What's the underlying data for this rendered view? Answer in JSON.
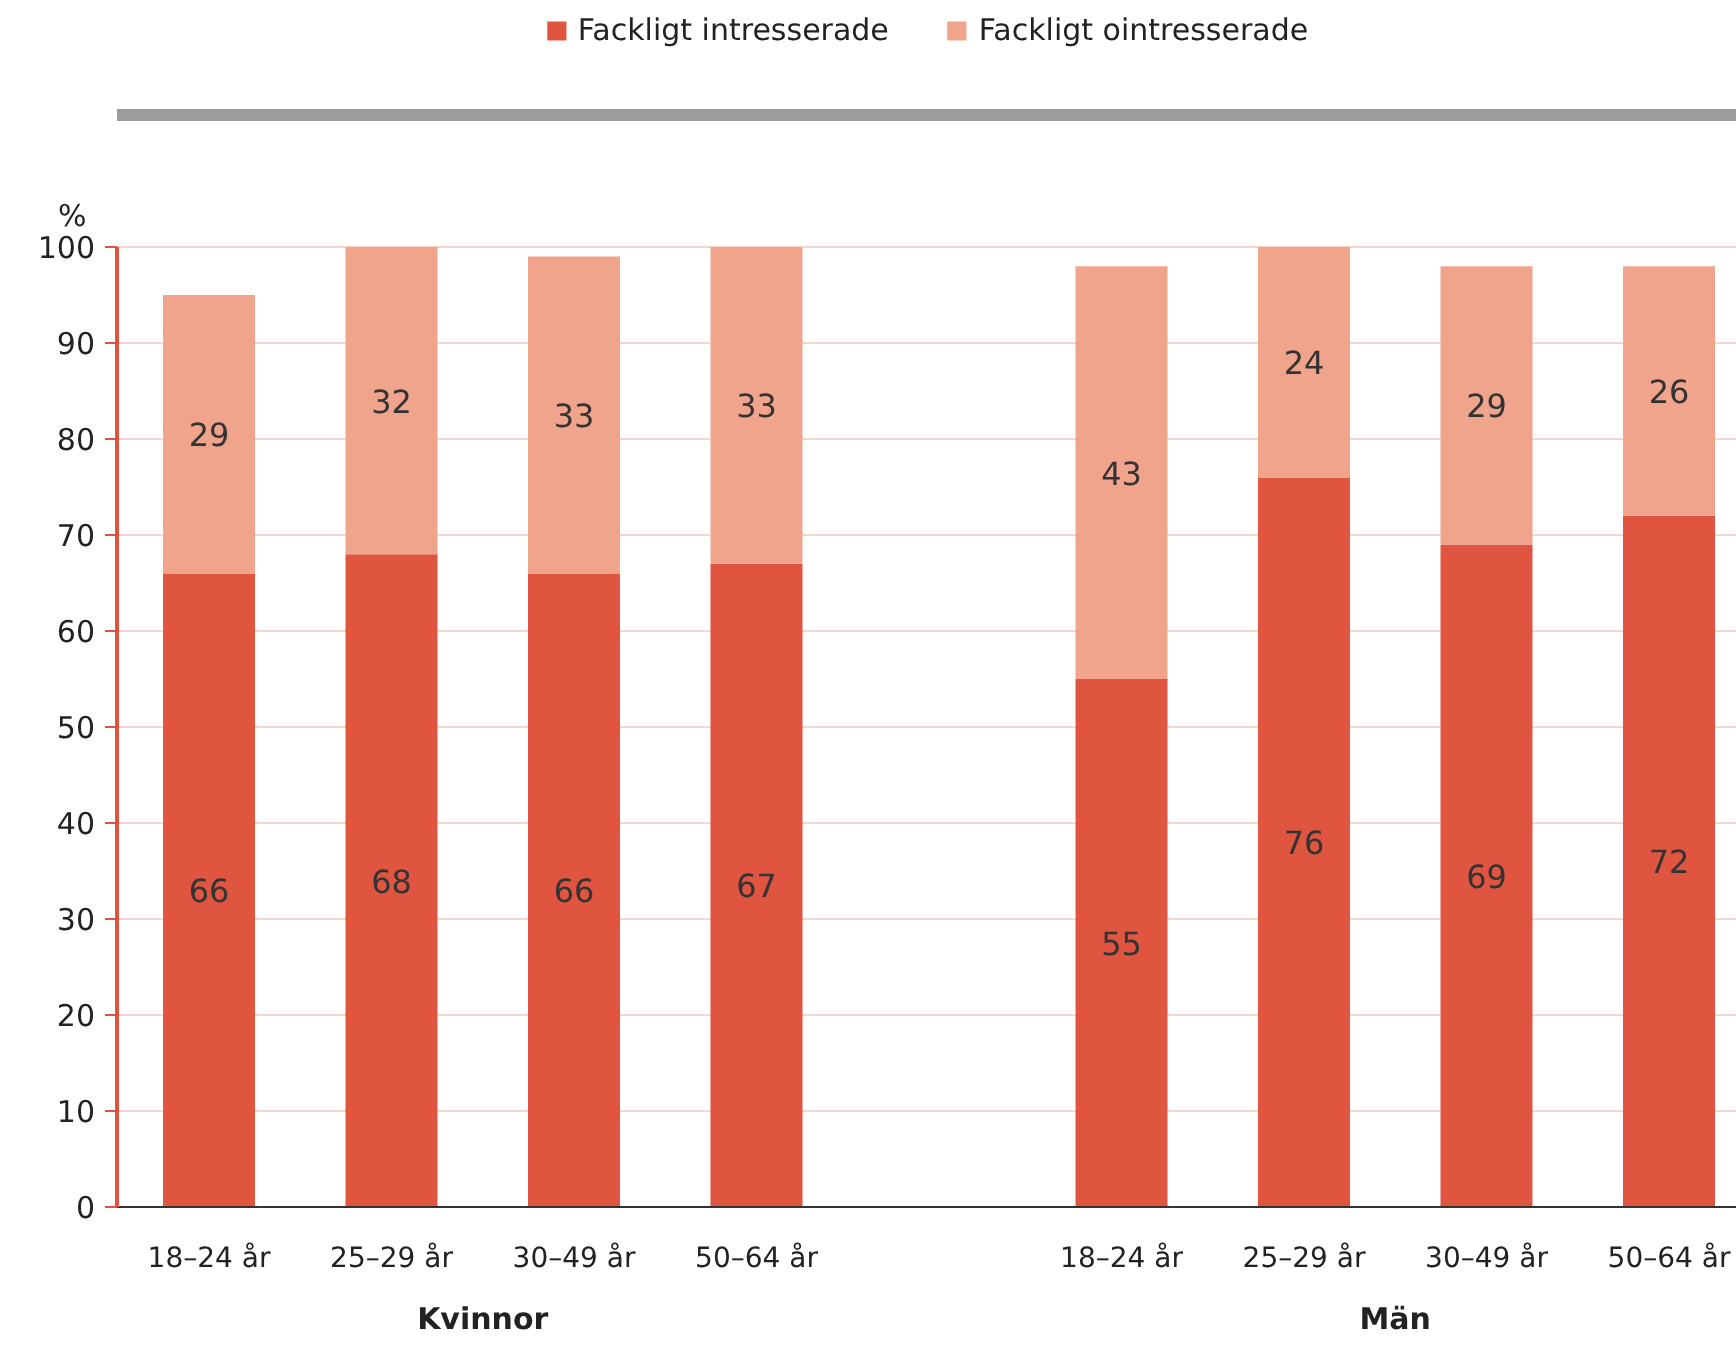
{
  "chart_data": {
    "type": "bar",
    "stacked": true,
    "ylabel": "%",
    "categories": [
      "18–24 år",
      "25–29 år",
      "30–49 år",
      "50–64 år",
      null,
      "18–24 år",
      "25–29 år",
      "30–49 år",
      "50–64 år"
    ],
    "series": [
      {
        "name": "Fackligt intresserade",
        "color": "#e05540",
        "values": [
          66,
          68,
          66,
          67,
          null,
          55,
          76,
          69,
          72
        ]
      },
      {
        "name": "Fackligt ointresserade",
        "color": "#f0a48c",
        "values": [
          29,
          32,
          33,
          33,
          null,
          43,
          24,
          29,
          26
        ]
      }
    ],
    "ylim": [
      0,
      100
    ],
    "yticks": [
      0,
      10,
      20,
      30,
      40,
      50,
      60,
      70,
      80,
      90,
      100
    ],
    "grid": "y",
    "legend": "top",
    "data_labels": true,
    "annotations": [
      "Kvinnor",
      "Män"
    ]
  }
}
